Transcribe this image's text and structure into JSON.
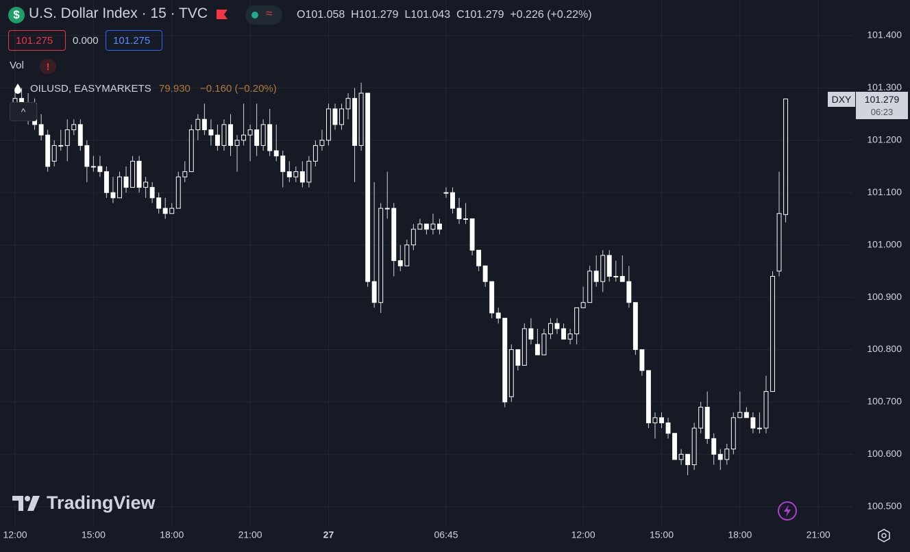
{
  "header": {
    "title": "U.S. Dollar Index · 15 · TVC",
    "open": "O101.058",
    "high": "H101.279",
    "low": "L101.043",
    "close": "C101.279",
    "change": "+0.226 (+0.22%)"
  },
  "trade_buttons": {
    "sell": "101.275",
    "spread": "0.000",
    "buy": "101.275"
  },
  "indicators": {
    "volume": "Vol",
    "compare_symbol": "OILUSD, EASYMARKETS",
    "compare_price": "79.930",
    "compare_change": "−0.160 (−0.20%)"
  },
  "price_tag": {
    "symbol": "DXY",
    "price": "101.279",
    "countdown": "06:23"
  },
  "logo": "TradingView",
  "chart_data": {
    "type": "candlestick",
    "up_color": "#161a25",
    "down_color": "#ffffff",
    "wick_color": "#d1d4dc",
    "grid": true,
    "ylim": [
      100.463,
      101.468
    ],
    "yticks": [
      {
        "value": 100.5,
        "label": "100.500"
      },
      {
        "value": 100.6,
        "label": "100.600"
      },
      {
        "value": 100.7,
        "label": "100.700"
      },
      {
        "value": 100.8,
        "label": "100.800"
      },
      {
        "value": 100.9,
        "label": "100.900"
      },
      {
        "value": 101.0,
        "label": "101.000"
      },
      {
        "value": 101.1,
        "label": "101.100"
      },
      {
        "value": 101.2,
        "label": "101.200"
      },
      {
        "value": 101.3,
        "label": "101.300"
      },
      {
        "value": 101.4,
        "label": "101.400"
      }
    ],
    "xlim": [
      -2.31,
      128.33
    ],
    "xticks": [
      {
        "value": 0,
        "label": "12:00"
      },
      {
        "value": 12,
        "label": "15:00"
      },
      {
        "value": 24,
        "label": "18:00"
      },
      {
        "value": 36,
        "label": "21:00"
      },
      {
        "value": 48,
        "label": "27"
      },
      {
        "value": 66,
        "label": "06:45"
      },
      {
        "value": 87,
        "label": "12:00"
      },
      {
        "value": 99,
        "label": "15:00"
      },
      {
        "value": 111,
        "label": "18:00"
      },
      {
        "value": 123,
        "label": "21:00"
      }
    ],
    "ohlc": [
      [
        101.27,
        101.3,
        101.25,
        101.28
      ],
      [
        101.28,
        101.3,
        101.24,
        101.25
      ],
      [
        101.25,
        101.29,
        101.23,
        101.27
      ],
      [
        101.27,
        101.28,
        101.22,
        101.23
      ],
      [
        101.23,
        101.25,
        101.2,
        101.21
      ],
      [
        101.21,
        101.22,
        101.14,
        101.15
      ],
      [
        101.16,
        101.2,
        101.15,
        101.19
      ],
      [
        101.19,
        101.22,
        101.18,
        101.19
      ],
      [
        101.19,
        101.24,
        101.16,
        101.22
      ],
      [
        101.22,
        101.24,
        101.21,
        101.23
      ],
      [
        101.23,
        101.24,
        101.18,
        101.19
      ],
      [
        101.19,
        101.2,
        101.12,
        101.15
      ],
      [
        101.15,
        101.17,
        101.14,
        101.15
      ],
      [
        101.15,
        101.17,
        101.13,
        101.14
      ],
      [
        101.14,
        101.15,
        101.09,
        101.1
      ],
      [
        101.1,
        101.13,
        101.08,
        101.09
      ],
      [
        101.09,
        101.14,
        101.09,
        101.13
      ],
      [
        101.13,
        101.15,
        101.1,
        101.11
      ],
      [
        101.11,
        101.17,
        101.11,
        101.16
      ],
      [
        101.16,
        101.17,
        101.1,
        101.11
      ],
      [
        101.11,
        101.13,
        101.09,
        101.12
      ],
      [
        101.11,
        101.12,
        101.08,
        101.09
      ],
      [
        101.09,
        101.1,
        101.06,
        101.07
      ],
      [
        101.07,
        101.09,
        101.05,
        101.06
      ],
      [
        101.06,
        101.08,
        101.06,
        101.07
      ],
      [
        101.07,
        101.14,
        101.07,
        101.13
      ],
      [
        101.13,
        101.16,
        101.12,
        101.14
      ],
      [
        101.14,
        101.23,
        101.14,
        101.22
      ],
      [
        101.22,
        101.25,
        101.2,
        101.24
      ],
      [
        101.24,
        101.27,
        101.21,
        101.22
      ],
      [
        101.22,
        101.24,
        101.19,
        101.21
      ],
      [
        101.21,
        101.23,
        101.18,
        101.19
      ],
      [
        101.19,
        101.24,
        101.18,
        101.23
      ],
      [
        101.23,
        101.25,
        101.17,
        101.19
      ],
      [
        101.19,
        101.21,
        101.14,
        101.2
      ],
      [
        101.2,
        101.27,
        101.19,
        101.21
      ],
      [
        101.21,
        101.23,
        101.16,
        101.22
      ],
      [
        101.22,
        101.27,
        101.17,
        101.19
      ],
      [
        101.19,
        101.24,
        101.18,
        101.23
      ],
      [
        101.23,
        101.26,
        101.17,
        101.18
      ],
      [
        101.18,
        101.23,
        101.16,
        101.17
      ],
      [
        101.17,
        101.18,
        101.11,
        101.14
      ],
      [
        101.14,
        101.16,
        101.12,
        101.13
      ],
      [
        101.13,
        101.15,
        101.12,
        101.14
      ],
      [
        101.14,
        101.16,
        101.11,
        101.12
      ],
      [
        101.12,
        101.17,
        101.11,
        101.16
      ],
      [
        101.16,
        101.2,
        101.15,
        101.19
      ],
      [
        101.19,
        101.22,
        101.18,
        101.2
      ],
      [
        101.2,
        101.27,
        101.19,
        101.26
      ],
      [
        101.26,
        101.27,
        101.22,
        101.23
      ],
      [
        101.23,
        101.27,
        101.22,
        101.26
      ],
      [
        101.26,
        101.29,
        101.24,
        101.28
      ],
      [
        101.28,
        101.3,
        101.12,
        101.19
      ],
      [
        101.19,
        101.31,
        101.18,
        101.29
      ],
      [
        101.29,
        101.29,
        100.92,
        100.93
      ],
      [
        100.93,
        101.12,
        100.88,
        100.89
      ],
      [
        100.89,
        101.08,
        100.87,
        101.07
      ],
      [
        101.07,
        101.14,
        101.05,
        101.07
      ],
      [
        101.07,
        101.08,
        100.94,
        100.97
      ],
      [
        100.97,
        101.0,
        100.95,
        100.96
      ],
      [
        100.96,
        101.01,
        100.96,
        101.0
      ],
      [
        101.0,
        101.04,
        100.99,
        101.03
      ],
      [
        101.03,
        101.05,
        101.03,
        101.04
      ],
      [
        101.04,
        101.04,
        101.02,
        101.03
      ],
      [
        101.03,
        101.06,
        101.02,
        101.04
      ],
      [
        101.04,
        101.05,
        101.02,
        101.03
      ],
      [
        101.1,
        101.11,
        101.09,
        101.1
      ],
      [
        101.1,
        101.11,
        101.06,
        101.07
      ],
      [
        101.07,
        101.09,
        101.04,
        101.05
      ],
      [
        101.05,
        101.08,
        101.04,
        101.05
      ],
      [
        101.05,
        101.05,
        100.98,
        100.99
      ],
      [
        100.99,
        100.99,
        100.95,
        100.96
      ],
      [
        100.96,
        100.96,
        100.92,
        100.93
      ],
      [
        100.93,
        100.93,
        100.86,
        100.87
      ],
      [
        100.87,
        100.88,
        100.85,
        100.86
      ],
      [
        100.86,
        100.86,
        100.69,
        100.7
      ],
      [
        100.71,
        100.81,
        100.7,
        100.8
      ],
      [
        100.8,
        100.8,
        100.76,
        100.77
      ],
      [
        100.77,
        100.85,
        100.77,
        100.84
      ],
      [
        100.84,
        100.86,
        100.81,
        100.82
      ],
      [
        100.81,
        100.84,
        100.79,
        100.79
      ],
      [
        100.79,
        100.84,
        100.79,
        100.83
      ],
      [
        100.83,
        100.86,
        100.82,
        100.85
      ],
      [
        100.85,
        100.86,
        100.83,
        100.84
      ],
      [
        100.84,
        100.85,
        100.82,
        100.82
      ],
      [
        100.82,
        100.84,
        100.81,
        100.83
      ],
      [
        100.83,
        100.88,
        100.81,
        100.88
      ],
      [
        100.88,
        100.92,
        100.88,
        100.89
      ],
      [
        100.89,
        100.96,
        100.89,
        100.95
      ],
      [
        100.95,
        100.98,
        100.92,
        100.93
      ],
      [
        100.93,
        100.99,
        100.91,
        100.98
      ],
      [
        100.98,
        100.99,
        100.93,
        100.94
      ],
      [
        100.94,
        100.97,
        100.93,
        100.94
      ],
      [
        100.94,
        100.98,
        100.93,
        100.93
      ],
      [
        100.93,
        100.96,
        100.88,
        100.89
      ],
      [
        100.89,
        100.89,
        100.79,
        100.8
      ],
      [
        100.8,
        100.8,
        100.75,
        100.76
      ],
      [
        100.76,
        100.76,
        100.65,
        100.66
      ],
      [
        100.66,
        100.68,
        100.63,
        100.67
      ],
      [
        100.67,
        100.68,
        100.65,
        100.66
      ],
      [
        100.66,
        100.67,
        100.63,
        100.64
      ],
      [
        100.64,
        100.64,
        100.59,
        100.59
      ],
      [
        100.59,
        100.61,
        100.58,
        100.6
      ],
      [
        100.6,
        100.6,
        100.56,
        100.58
      ],
      [
        100.58,
        100.66,
        100.57,
        100.65
      ],
      [
        100.65,
        100.7,
        100.64,
        100.69
      ],
      [
        100.69,
        100.72,
        100.62,
        100.63
      ],
      [
        100.63,
        100.64,
        100.58,
        100.6
      ],
      [
        100.6,
        100.61,
        100.57,
        100.59
      ],
      [
        100.59,
        100.62,
        100.58,
        100.61
      ],
      [
        100.61,
        100.68,
        100.6,
        100.67
      ],
      [
        100.67,
        100.72,
        100.67,
        100.68
      ],
      [
        100.68,
        100.69,
        100.67,
        100.67
      ],
      [
        100.67,
        100.68,
        100.64,
        100.65
      ],
      [
        100.65,
        100.68,
        100.64,
        100.65
      ],
      [
        100.65,
        100.75,
        100.64,
        100.72
      ],
      [
        100.72,
        100.95,
        100.72,
        100.94
      ],
      [
        100.95,
        101.14,
        100.94,
        101.06
      ],
      [
        101.058,
        101.279,
        101.043,
        101.279
      ]
    ]
  }
}
